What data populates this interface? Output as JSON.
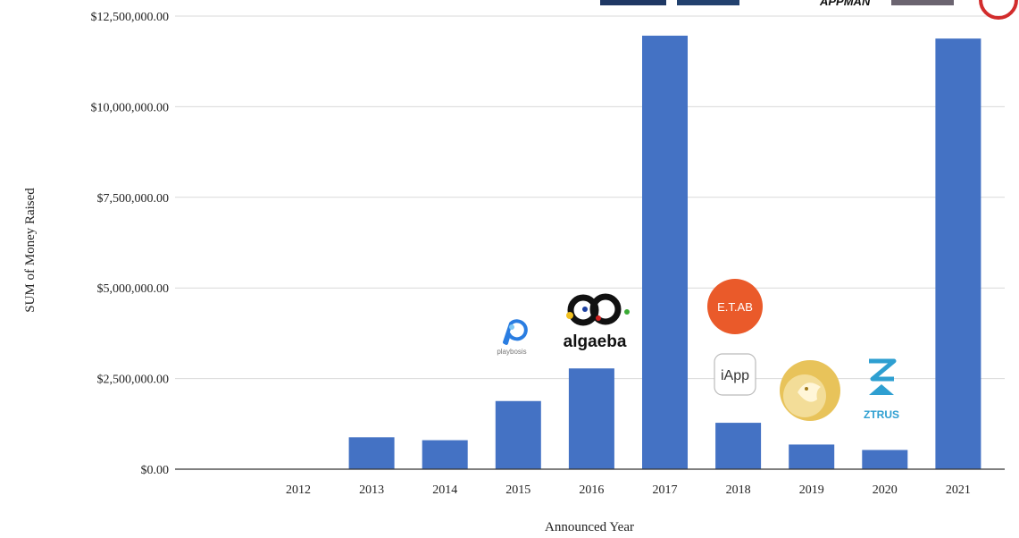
{
  "chart_data": {
    "type": "bar",
    "categories": [
      "2012",
      "2013",
      "2014",
      "2015",
      "2016",
      "2017",
      "2018",
      "2019",
      "2020",
      "2021"
    ],
    "values": [
      0,
      880000,
      800000,
      1880000,
      2780000,
      11960000,
      1280000,
      680000,
      530000,
      11880000
    ],
    "xlabel": "Announced Year",
    "ylabel": "SUM of Money Raised",
    "ylim": [
      0,
      12500000
    ],
    "y_ticks": [
      0,
      2500000,
      5000000,
      7500000,
      10000000,
      12500000
    ],
    "y_tick_labels": [
      "$0.00",
      "$2,500,000.00",
      "$5,000,000.00",
      "$7,500,000.00",
      "$10,000,000.00",
      "$12,500,000.00"
    ],
    "grid": true,
    "bar_color": "#4472c4",
    "grid_color": "#d9d9d9"
  },
  "logos": {
    "playbosis": {
      "name": "playbosis",
      "icon": "playbosis-logo",
      "color": "#2a7de1"
    },
    "algaeba": {
      "name": "algaeba",
      "icon": "algaeba-logo",
      "color": "#111111"
    },
    "eitlab": {
      "name": "E.T.AB",
      "icon": "eitlab-logo",
      "color": "#ea5a2a"
    },
    "iapp": {
      "name": "iApp",
      "icon": "iapp-logo",
      "color": "#333333"
    },
    "bird": {
      "icon": "gold-bird-logo",
      "color": "#e8c35a"
    },
    "ztrus": {
      "name": "ZTRUS",
      "icon": "ztrus-logo",
      "color": "#2e9fd1"
    },
    "top_partial": {
      "text": "APPMAN",
      "icon": "appman-logo",
      "color": "#111111"
    }
  }
}
